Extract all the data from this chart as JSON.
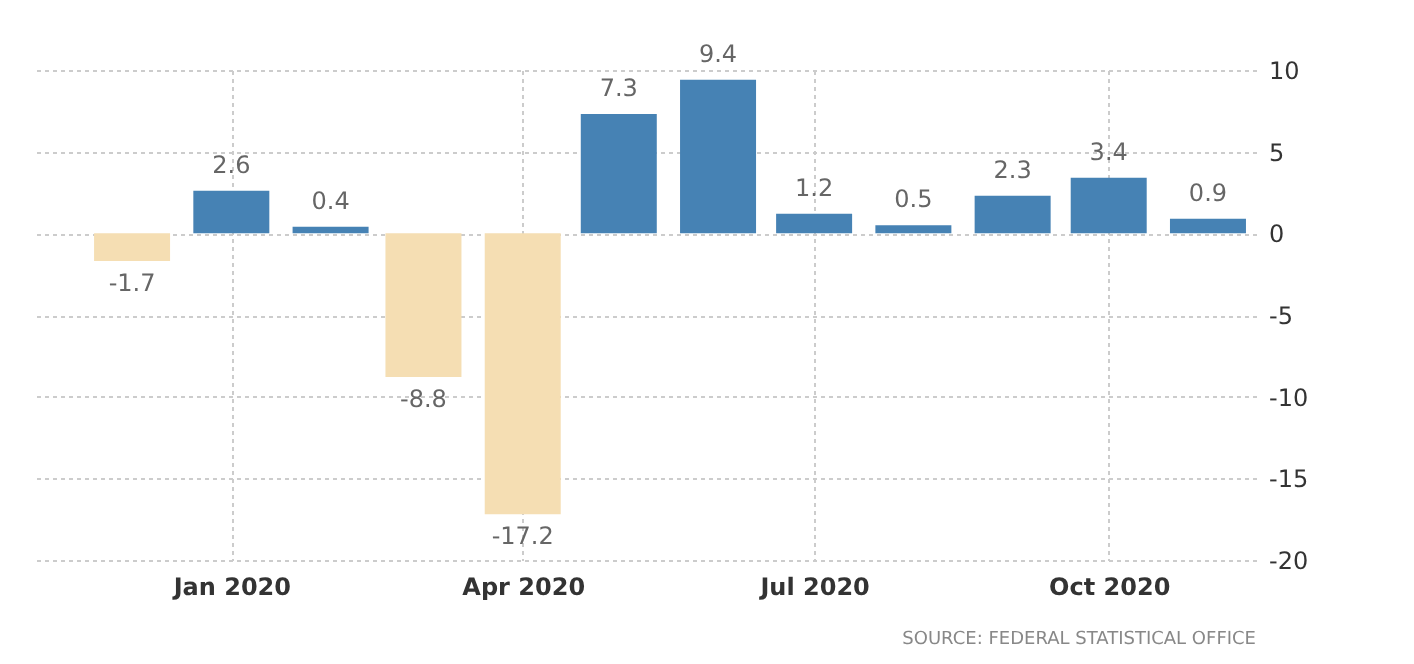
{
  "chart_data": {
    "type": "bar",
    "x": [
      "2019-12",
      "2020-01",
      "2020-02",
      "2020-03",
      "2020-04",
      "2020-05",
      "2020-06",
      "2020-07",
      "2020-08",
      "2020-09",
      "2020-10",
      "2020-11"
    ],
    "values": [
      -1.7,
      2.6,
      0.4,
      -8.8,
      -17.2,
      7.3,
      9.4,
      1.2,
      0.5,
      2.3,
      3.4,
      0.9
    ],
    "colors": [
      "#f5deb3",
      "#4682b4",
      "#4682b4",
      "#f5deb3",
      "#f5deb3",
      "#4682b4",
      "#4682b4",
      "#4682b4",
      "#4682b4",
      "#4682b4",
      "#4682b4",
      "#4682b4"
    ],
    "data_labels": true,
    "xlim": [
      "2019-11-01",
      "2020-11-16"
    ],
    "xticks": [
      {
        "value": "2020-01",
        "label": "Jan 2020"
      },
      {
        "value": "2020-04",
        "label": "Apr 2020"
      },
      {
        "value": "2020-07",
        "label": "Jul 2020"
      },
      {
        "value": "2020-10",
        "label": "Oct 2020"
      }
    ],
    "ylim": [
      -20,
      10
    ],
    "yticks": [
      -20,
      -15,
      -10,
      -5,
      0,
      5,
      10
    ],
    "grid": true,
    "annotations": [
      "SOURCE: FEDERAL STATISTICAL OFFICE"
    ]
  }
}
